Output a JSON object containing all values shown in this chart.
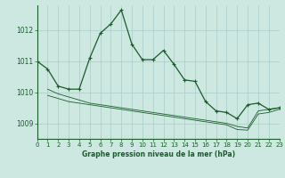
{
  "background_color": "#cce8e0",
  "grid_color": "#aacccc",
  "line_color": "#1a5c2a",
  "title": "Graphe pression niveau de la mer (hPa)",
  "xlim": [
    0,
    23
  ],
  "ylim": [
    1008.5,
    1012.8
  ],
  "yticks": [
    1009,
    1010,
    1011,
    1012
  ],
  "xticks": [
    0,
    1,
    2,
    3,
    4,
    5,
    6,
    7,
    8,
    9,
    10,
    11,
    12,
    13,
    14,
    15,
    16,
    17,
    18,
    19,
    20,
    21,
    22,
    23
  ],
  "main_x": [
    0,
    1,
    2,
    3,
    4,
    5,
    6,
    7,
    8,
    9,
    10,
    11,
    12,
    13,
    14,
    15,
    16,
    17,
    18,
    19,
    20,
    21,
    22,
    23
  ],
  "main_y": [
    1011.0,
    1010.75,
    1010.2,
    1010.1,
    1010.1,
    1011.1,
    1011.9,
    1012.2,
    1012.65,
    1011.55,
    1011.05,
    1011.05,
    1011.35,
    1010.9,
    1010.4,
    1010.35,
    1009.7,
    1009.4,
    1009.35,
    1009.15,
    1009.6,
    1009.65,
    1009.45,
    1009.5
  ],
  "trend1_x": [
    1,
    2,
    3,
    4,
    5,
    6,
    7,
    8,
    9,
    10,
    11,
    12,
    13,
    14,
    15,
    16,
    17,
    18,
    19,
    20,
    21,
    22,
    23
  ],
  "trend1_y": [
    1010.1,
    1009.95,
    1009.85,
    1009.75,
    1009.65,
    1009.6,
    1009.55,
    1009.5,
    1009.45,
    1009.4,
    1009.35,
    1009.3,
    1009.25,
    1009.2,
    1009.15,
    1009.1,
    1009.05,
    1009.0,
    1008.9,
    1008.85,
    1009.4,
    1009.45,
    1009.5
  ],
  "trend2_x": [
    1,
    2,
    3,
    4,
    5,
    6,
    7,
    8,
    9,
    10,
    11,
    12,
    13,
    14,
    15,
    16,
    17,
    18,
    19,
    20,
    21,
    22,
    23
  ],
  "trend2_y": [
    1009.9,
    1009.8,
    1009.7,
    1009.65,
    1009.6,
    1009.55,
    1009.5,
    1009.45,
    1009.4,
    1009.35,
    1009.3,
    1009.25,
    1009.2,
    1009.15,
    1009.1,
    1009.05,
    1009.0,
    1008.95,
    1008.8,
    1008.78,
    1009.3,
    1009.35,
    1009.45
  ]
}
